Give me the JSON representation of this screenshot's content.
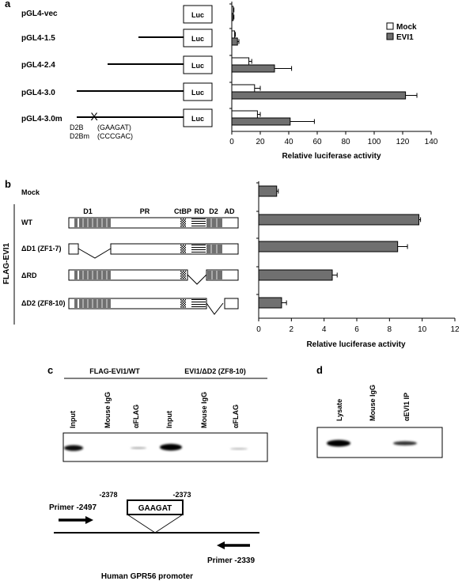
{
  "panel_a": {
    "label": "a",
    "constructs": [
      {
        "name": "pGL4-vec",
        "mock": 1,
        "mock_err": 0.5,
        "evi1": 1,
        "evi1_err": 0.5
      },
      {
        "name": "pGL4-1.5",
        "mock": 2,
        "mock_err": 0.5,
        "evi1": 4,
        "evi1_err": 1
      },
      {
        "name": "pGL4-2.4",
        "mock": 12,
        "mock_err": 2,
        "evi1": 30,
        "evi1_err": 12
      },
      {
        "name": "pGL4-3.0",
        "mock": 16,
        "mock_err": 4,
        "evi1": 122,
        "evi1_err": 8
      },
      {
        "name": "pGL4-3.0m",
        "mock": 18,
        "mock_err": 2,
        "evi1": 41,
        "evi1_err": 17
      }
    ],
    "luc_label": "Luc",
    "mutation_mark": "X",
    "site_wt": "D2B",
    "site_wt_seq": "(GAAGAT)",
    "site_mut": "D2Bm",
    "site_mut_seq": "(CCCGAC)",
    "legend": [
      {
        "name": "Mock",
        "color": "#ffffff"
      },
      {
        "name": "EVI1",
        "color": "#707070"
      }
    ],
    "chart_data": {
      "type": "bar",
      "orientation": "horizontal",
      "categories": [
        "pGL4-vec",
        "pGL4-1.5",
        "pGL4-2.4",
        "pGL4-3.0",
        "pGL4-3.0m"
      ],
      "series": [
        {
          "name": "Mock",
          "values": [
            1,
            2,
            12,
            16,
            18
          ]
        },
        {
          "name": "EVI1",
          "values": [
            1,
            4,
            30,
            122,
            41
          ]
        }
      ],
      "xlabel": "Relative luciferase activity",
      "xlim": [
        0,
        140
      ],
      "ticks": [
        "0",
        "20",
        "40",
        "60",
        "80",
        "100",
        "120",
        "140"
      ]
    }
  },
  "panel_b": {
    "label": "b",
    "group_label": "FLAG-EVI1",
    "domain_labels": [
      "D1",
      "PR",
      "CtBP",
      "RD",
      "D2",
      "AD"
    ],
    "rows": [
      {
        "name": "Mock",
        "value": 1.1,
        "err": 0.1
      },
      {
        "name": "WT",
        "value": 9.8,
        "err": 0.1
      },
      {
        "name": "ΔD1 (ZF1-7)",
        "value": 8.5,
        "err": 0.6
      },
      {
        "name": "ΔRD",
        "value": 4.5,
        "err": 0.3
      },
      {
        "name": "ΔD2 (ZF8-10)",
        "value": 1.4,
        "err": 0.3
      }
    ],
    "chart_data": {
      "type": "bar",
      "orientation": "horizontal",
      "categories": [
        "Mock",
        "WT",
        "ΔD1 (ZF1-7)",
        "ΔRD",
        "ΔD2 (ZF8-10)"
      ],
      "values": [
        1.1,
        9.8,
        8.5,
        4.5,
        1.4
      ],
      "xlabel": "Relative luciferase activity",
      "xlim": [
        0,
        12
      ],
      "ticks": [
        "0",
        "2",
        "4",
        "6",
        "8",
        "10",
        "12"
      ]
    }
  },
  "panel_c": {
    "label": "c",
    "group1": "FLAG-EVI1/WT",
    "group2": "EVI1/ΔD2 (ZF8-10)",
    "lanes": [
      "Input",
      "Mouse IgG",
      "αFLAG",
      "Input",
      "Mouse IgG",
      "αFLAG"
    ],
    "primer_fwd": "Primer -2497",
    "primer_rev": "Primer -2339",
    "site_start": "-2378",
    "site_end": "-2373",
    "site_seq": "GAAGAT",
    "promoter_label": "Human GPR56 promoter"
  },
  "panel_d": {
    "label": "d",
    "lanes": [
      "Lysate",
      "Mouse IgG",
      "αEVI1 IP"
    ]
  }
}
